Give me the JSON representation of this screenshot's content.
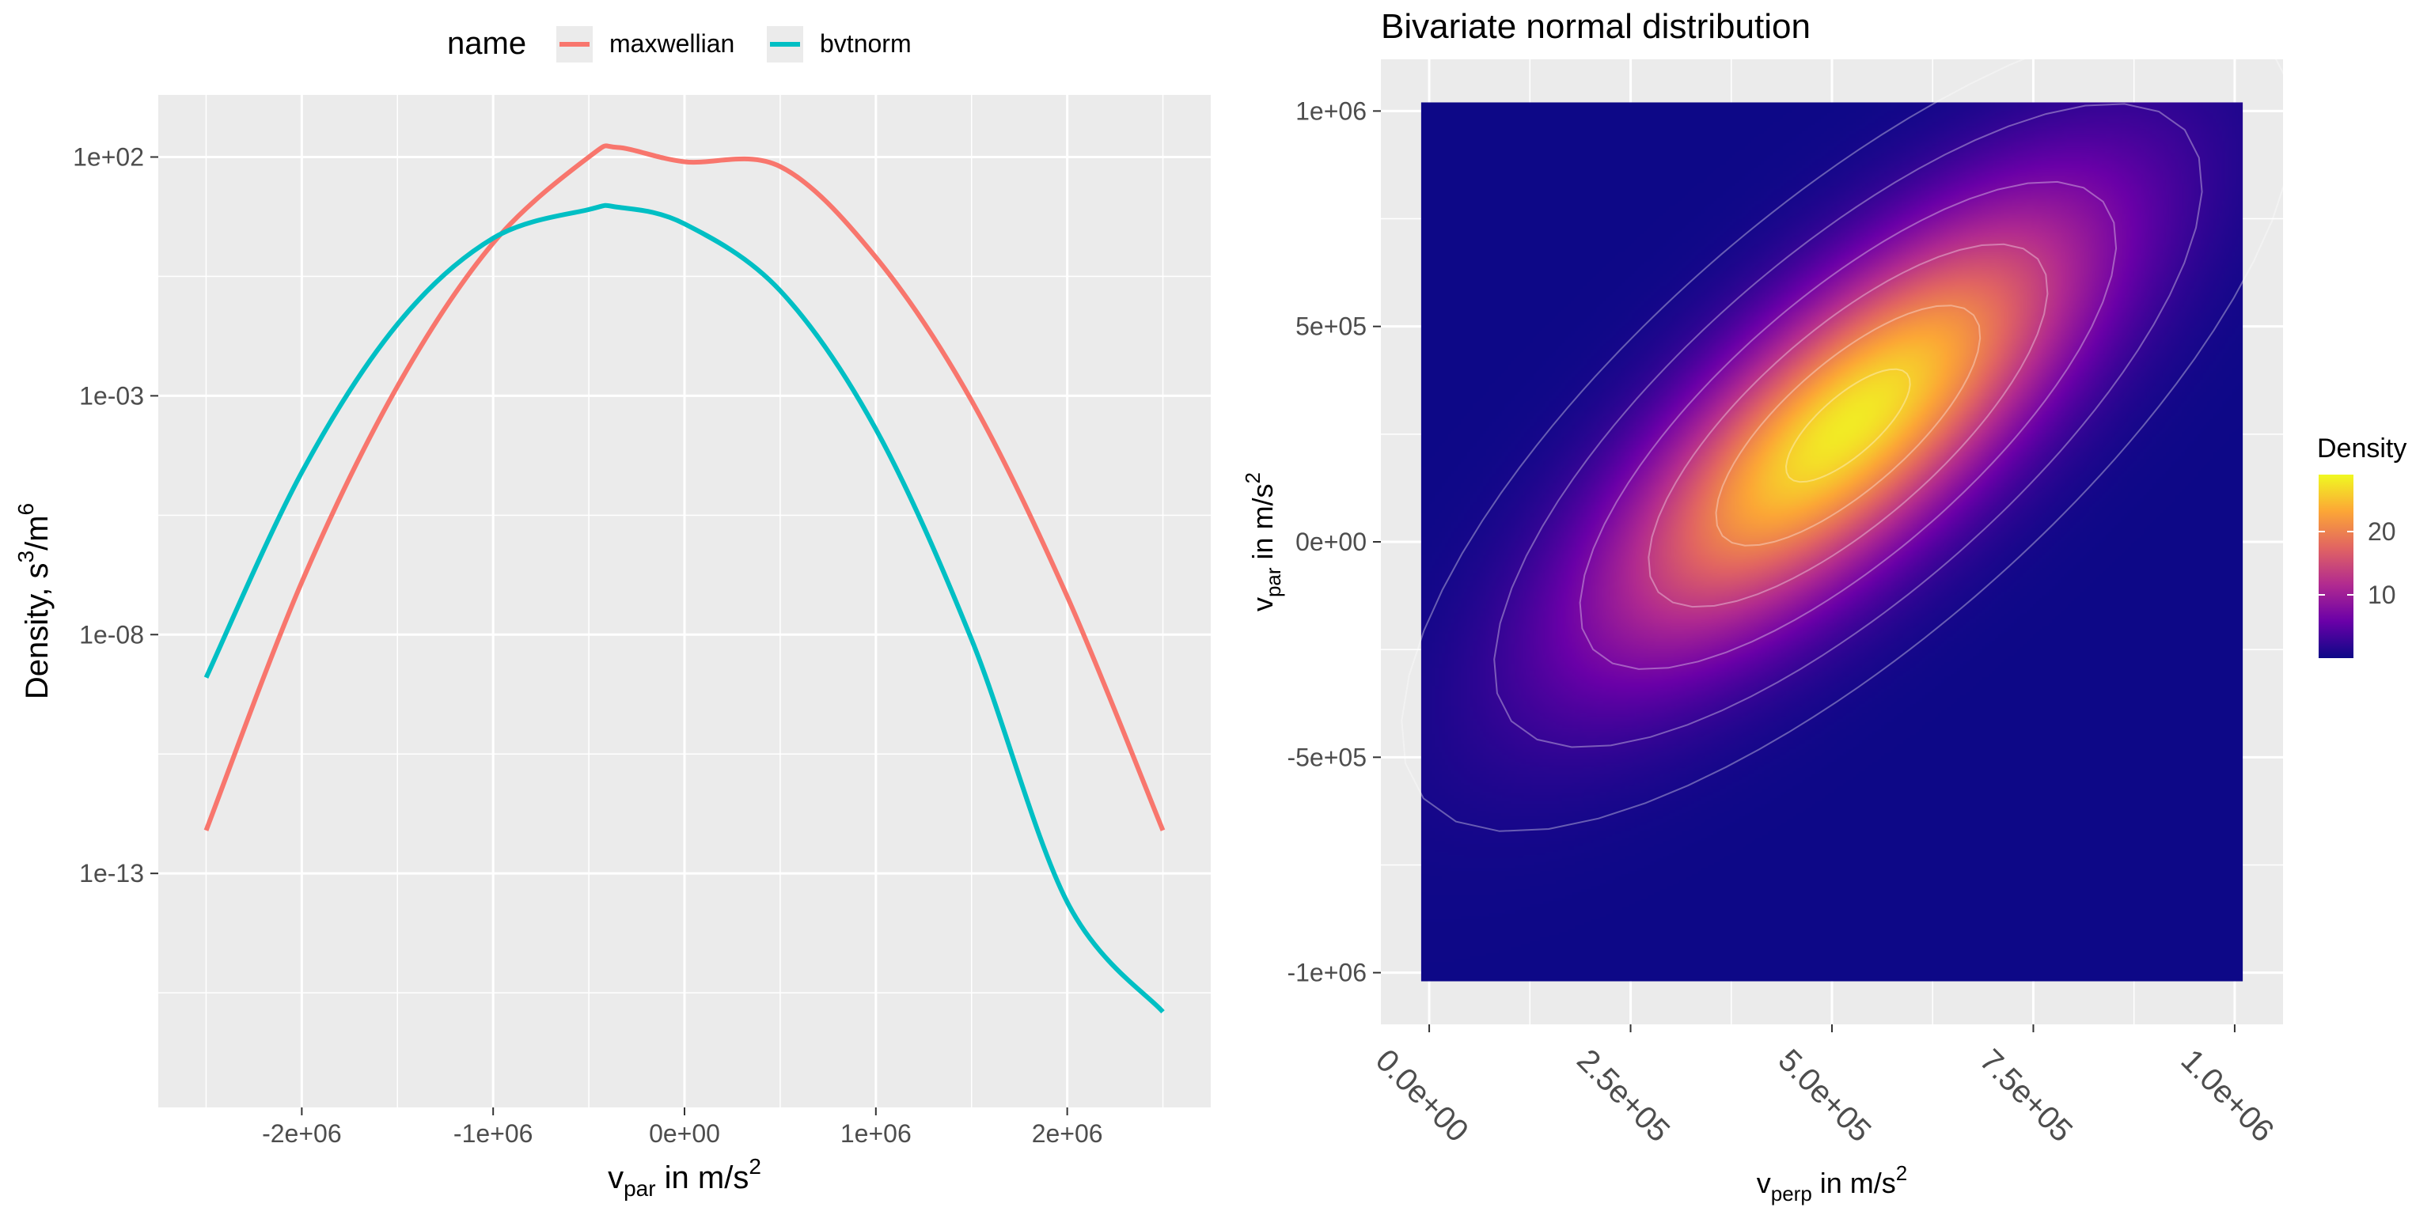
{
  "chart_data": [
    {
      "type": "line",
      "legend": {
        "title": "name",
        "position": "top"
      },
      "xlabel": {
        "main": "v",
        "sub": "par",
        "rest": " in m/s",
        "sup": "2"
      },
      "ylabel": {
        "main": "Density, s",
        "sup1": "3",
        "mid": "/m",
        "sup2": "6"
      },
      "y_scale": "log10",
      "xlim": [
        -2750000,
        2750000
      ],
      "ylim_log10": [
        -17.9,
        3.3
      ],
      "x_ticks": [
        -2000000,
        -1000000,
        0,
        1000000,
        2000000
      ],
      "x_tick_labels": [
        "-2e+06",
        "-1e+06",
        "0e+00",
        "1e+06",
        "2e+06"
      ],
      "y_ticks_log10": [
        2,
        -3,
        -8,
        -13
      ],
      "y_tick_labels": [
        "1e+02",
        "1e-03",
        "1e-08",
        "1e-13"
      ],
      "grid": true,
      "x": [
        -2500000,
        -2000000,
        -1500000,
        -1000000,
        -500000,
        -350000,
        0,
        500000,
        1000000,
        1500000,
        2000000,
        2500000
      ],
      "series": [
        {
          "name": "maxwellian",
          "color": "#F8766D",
          "log10_values": [
            -12.1,
            -6.9,
            -2.8,
            0.2,
            2.0,
            2.2,
            1.9,
            1.8,
            -0.1,
            -3.1,
            -7.2,
            -12.1
          ]
        },
        {
          "name": "bvtnorm",
          "color": "#00BFC4",
          "log10_values": [
            -8.9,
            -4.6,
            -1.5,
            0.3,
            0.9,
            0.95,
            0.6,
            -0.8,
            -3.7,
            -8.1,
            -13.6,
            -15.9
          ]
        }
      ]
    },
    {
      "type": "heatmap",
      "title": "Bivariate normal distribution",
      "xlabel": {
        "main": "v",
        "sub": "perp",
        "rest": " in m/s",
        "sup": "2"
      },
      "ylabel": {
        "main": "v",
        "sub": "par",
        "rest": " in m/s",
        "sup": "2"
      },
      "xlim": [
        -60000,
        1060000
      ],
      "ylim": [
        -1120000,
        1120000
      ],
      "data_extent": {
        "x": [
          -10000,
          1010000
        ],
        "y": [
          -1020000,
          1020000
        ]
      },
      "x_ticks": [
        0,
        250000,
        500000,
        750000,
        1000000
      ],
      "x_tick_labels": [
        "0.0e+00",
        "2.5e+05",
        "5.0e+05",
        "7.5e+05",
        "1.0e+06"
      ],
      "y_ticks": [
        1000000,
        500000,
        0,
        -500000,
        -1000000
      ],
      "y_tick_labels": [
        "1e+06",
        "5e+05",
        "0e+00",
        "-5e+05",
        "-1e+06"
      ],
      "grid": true,
      "density": {
        "mean": [
          520000,
          270000
        ],
        "sd": [
          200000,
          340000
        ],
        "correlation": 0.75,
        "peak": 28
      },
      "contour_levels": [
        26,
        20,
        13,
        7,
        2.5,
        0.6
      ],
      "colorbar": {
        "title": "Density",
        "ticks": [
          10,
          20
        ],
        "tick_labels": [
          "10",
          "20"
        ],
        "range": [
          0,
          29
        ],
        "palette": [
          "#0D0887",
          "#6A00A8",
          "#B12A90",
          "#E16462",
          "#FCA636",
          "#F0F921"
        ]
      }
    }
  ]
}
